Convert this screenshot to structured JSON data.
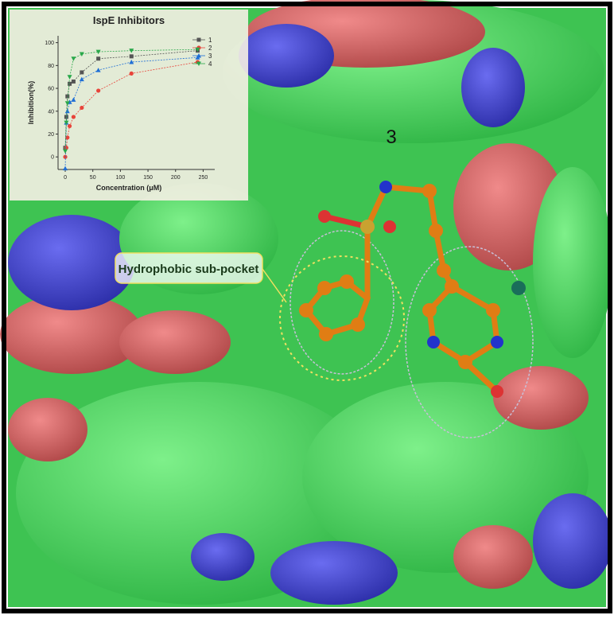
{
  "chart_data": {
    "type": "line",
    "title": "IspE Inhibitors",
    "x_label": "Concentration (μM)",
    "y_label": "Inhibition(%)",
    "x": [
      0,
      2,
      4,
      8,
      15,
      30,
      60,
      120,
      240
    ],
    "series": [
      {
        "name": "1",
        "color": "#555555",
        "marker": "square",
        "values": [
          8,
          35,
          53,
          64,
          66,
          74,
          86,
          88,
          93
        ]
      },
      {
        "name": "2",
        "color": "#e8443a",
        "marker": "circle",
        "values": [
          0,
          8,
          17,
          27,
          35,
          43,
          58,
          73,
          83
        ]
      },
      {
        "name": "3",
        "color": "#1f6fd6",
        "marker": "triangle",
        "values": [
          -10,
          30,
          40,
          48,
          50,
          68,
          76,
          83,
          87
        ]
      },
      {
        "name": "4",
        "color": "#2aa84a",
        "marker": "triangle-down",
        "values": [
          5,
          30,
          47,
          70,
          86,
          90,
          92,
          93,
          94
        ]
      }
    ],
    "xlim": [
      -13,
      271
    ],
    "ylim": [
      -11,
      106
    ],
    "xticks": [
      0,
      50,
      100,
      150,
      200,
      250
    ],
    "yticks": [
      0,
      20,
      40,
      60,
      80,
      100
    ],
    "legend": "upper right"
  },
  "image": {
    "labels": [
      "3",
      "Hydrophobic sub-pocket"
    ]
  }
}
